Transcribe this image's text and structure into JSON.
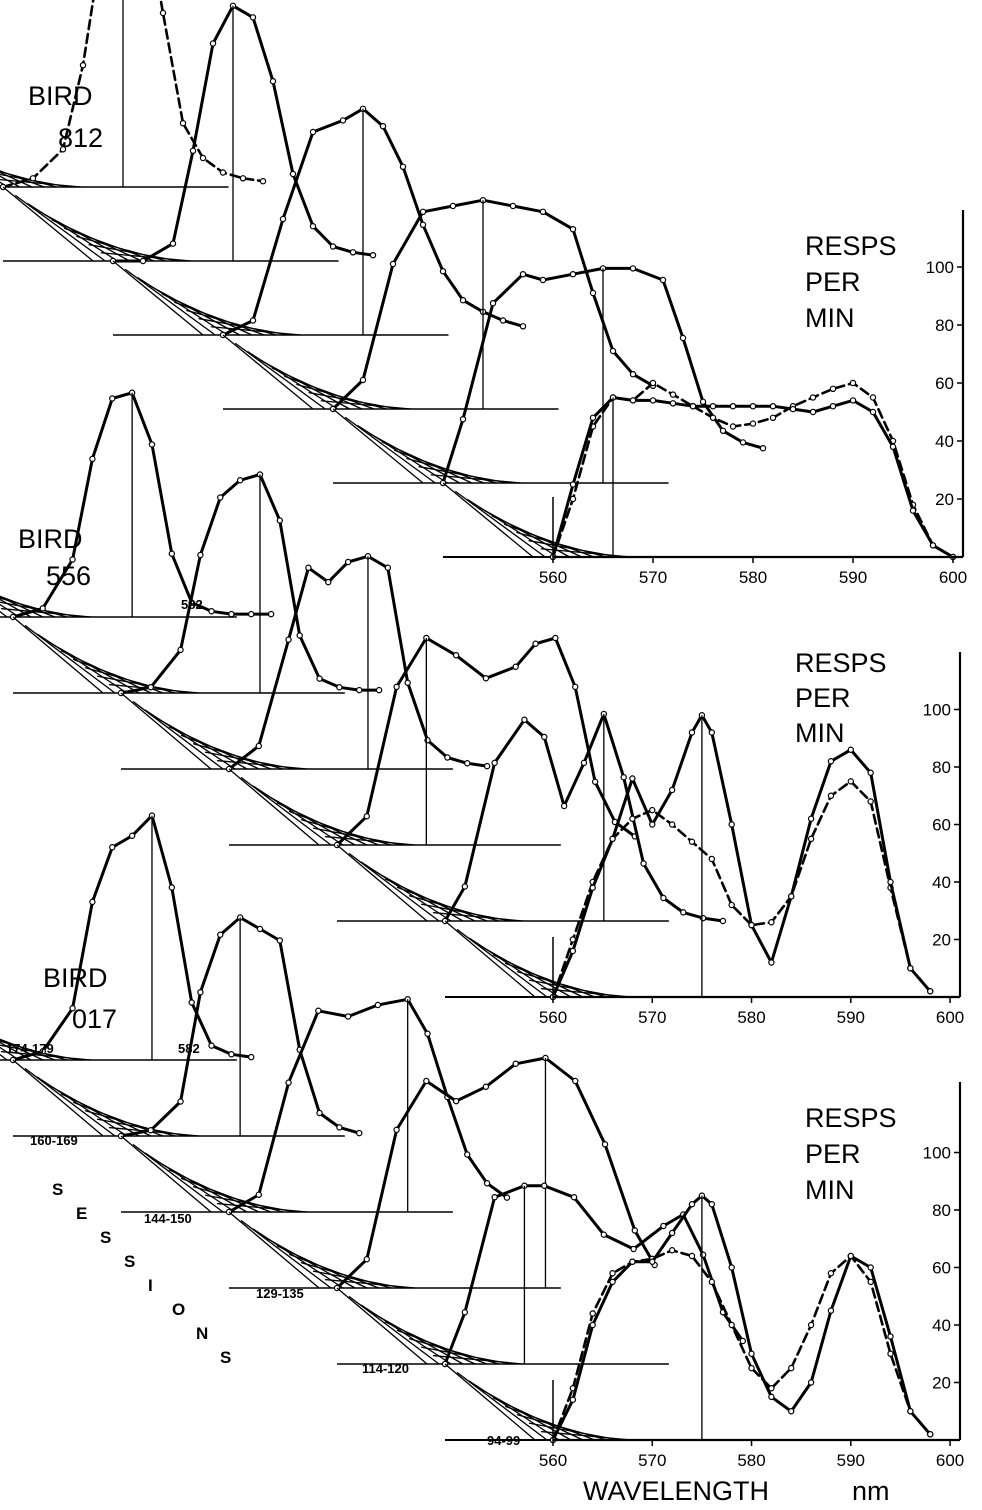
{
  "figure": {
    "xlabel": "WAVELENGTH",
    "xunit": "nm",
    "sessions_label": "SESSIONS"
  },
  "chart_data": [
    {
      "type": "line",
      "subject": "BIRD 812",
      "ylabel": "RESPS PER MIN",
      "y_label_lines": [
        "RESPS",
        "PER",
        "MIN"
      ],
      "title_lines": [
        "BIRD",
        "812"
      ],
      "xlim": [
        560,
        601
      ],
      "ylim": [
        0,
        115
      ],
      "x_ticks": [
        560,
        570,
        580,
        590,
        600
      ],
      "y_ticks": [
        20,
        40,
        60,
        80,
        100
      ],
      "series": [
        {
          "layer": 0,
          "style": "dashed",
          "x": [
            560,
            563,
            566,
            568,
            570,
            572,
            574,
            576,
            578,
            580,
            582,
            584,
            586
          ],
          "y": [
            0,
            3,
            13,
            42,
            86,
            118,
            100,
            60,
            22,
            10,
            5,
            3,
            2
          ]
        },
        {
          "layer": 1,
          "style": "solid",
          "x": [
            560,
            563,
            566,
            568,
            570,
            572,
            574,
            576,
            578,
            580,
            582,
            584,
            586
          ],
          "y": [
            0,
            0,
            6,
            38,
            75,
            88,
            84,
            62,
            30,
            12,
            5,
            3,
            2
          ]
        },
        {
          "layer": 2,
          "style": "solid",
          "x": [
            560,
            563,
            566,
            569,
            572,
            574,
            576,
            578,
            580,
            582,
            584,
            586,
            588,
            590
          ],
          "y": [
            0,
            5,
            40,
            70,
            74,
            78,
            72,
            58,
            38,
            22,
            12,
            8,
            5,
            3
          ]
        },
        {
          "layer": 3,
          "style": "solid",
          "x": [
            560,
            563,
            566,
            569,
            572,
            575,
            578,
            581,
            584,
            586,
            588,
            590,
            592
          ],
          "y": [
            0,
            10,
            50,
            68,
            70,
            72,
            70,
            68,
            62,
            40,
            20,
            12,
            8
          ]
        },
        {
          "layer": 4,
          "style": "solid",
          "x": [
            560,
            562,
            565,
            568,
            570,
            573,
            576,
            579,
            582,
            584,
            586,
            588,
            590,
            592
          ],
          "y": [
            0,
            22,
            62,
            72,
            70,
            72,
            74,
            74,
            70,
            50,
            28,
            18,
            14,
            12
          ]
        },
        {
          "layer": 5,
          "style": "dashed",
          "x": [
            560,
            562,
            564,
            566,
            568,
            570,
            572,
            574,
            576,
            578,
            580,
            582,
            584,
            586,
            588,
            590,
            592,
            594,
            596,
            598,
            600
          ],
          "y": [
            0,
            20,
            45,
            55,
            54,
            60,
            56,
            52,
            48,
            45,
            46,
            48,
            52,
            55,
            58,
            60,
            55,
            40,
            18,
            4,
            0
          ]
        },
        {
          "layer": 5,
          "style": "solid",
          "x": [
            560,
            562,
            564,
            566,
            568,
            570,
            572,
            574,
            576,
            578,
            580,
            582,
            584,
            586,
            588,
            590,
            592,
            594,
            596,
            598,
            600
          ],
          "y": [
            0,
            25,
            48,
            55,
            54,
            54,
            53,
            52,
            52,
            52,
            52,
            52,
            51,
            50,
            52,
            54,
            50,
            38,
            16,
            4,
            0
          ]
        }
      ]
    },
    {
      "type": "line",
      "subject": "BIRD 556",
      "ylabel": "RESPS PER MIN",
      "y_label_lines": [
        "RESPS",
        "PER",
        "MIN"
      ],
      "title_lines": [
        "BIRD",
        "556"
      ],
      "peak_label": "582",
      "xlim": [
        560,
        601
      ],
      "ylim": [
        0,
        115
      ],
      "x_ticks": [
        560,
        570,
        580,
        590,
        600
      ],
      "y_ticks": [
        20,
        40,
        60,
        80,
        100
      ],
      "series": [
        {
          "layer": 0,
          "style": "solid",
          "x": [
            560,
            563,
            566,
            568,
            570,
            572,
            574,
            576,
            578,
            580,
            582,
            584,
            586
          ],
          "y": [
            0,
            3,
            20,
            55,
            76,
            78,
            60,
            22,
            5,
            2,
            1,
            1,
            1
          ]
        },
        {
          "layer": 1,
          "style": "solid",
          "x": [
            560,
            563,
            566,
            568,
            570,
            572,
            574,
            576,
            578,
            580,
            582,
            584,
            586
          ],
          "y": [
            0,
            2,
            15,
            48,
            68,
            74,
            76,
            60,
            20,
            5,
            2,
            1,
            1
          ]
        },
        {
          "layer": 2,
          "style": "solid",
          "x": [
            560,
            563,
            566,
            568,
            570,
            572,
            574,
            576,
            578,
            580,
            582,
            584,
            586
          ],
          "y": [
            0,
            8,
            45,
            70,
            65,
            72,
            74,
            70,
            30,
            10,
            4,
            2,
            1
          ]
        },
        {
          "layer": 3,
          "style": "solid",
          "x": [
            560,
            563,
            566,
            569,
            572,
            575,
            578,
            580,
            582,
            584,
            586,
            588,
            590
          ],
          "y": [
            0,
            10,
            55,
            72,
            66,
            58,
            62,
            70,
            72,
            55,
            22,
            8,
            3
          ]
        },
        {
          "layer": 4,
          "style": "solid",
          "x": [
            560,
            562,
            565,
            568,
            570,
            572,
            574,
            576,
            578,
            580,
            582,
            584,
            586,
            588
          ],
          "y": [
            0,
            12,
            55,
            70,
            64,
            40,
            55,
            72,
            50,
            20,
            8,
            3,
            1,
            0
          ]
        },
        {
          "layer": 5,
          "style": "dashed",
          "x": [
            560,
            562,
            564,
            566,
            568,
            570,
            572,
            574,
            576,
            578,
            580,
            582,
            584,
            586,
            588,
            590,
            592,
            594,
            596,
            598
          ],
          "y": [
            0,
            20,
            40,
            55,
            62,
            65,
            60,
            54,
            48,
            32,
            25,
            26,
            35,
            55,
            70,
            75,
            68,
            38,
            10,
            2
          ]
        },
        {
          "layer": 5,
          "style": "solid",
          "x": [
            560,
            562,
            564,
            566,
            568,
            570,
            572,
            574,
            575,
            576,
            578,
            580,
            582,
            584,
            586,
            588,
            590,
            592,
            594,
            596,
            598
          ],
          "y": [
            0,
            16,
            38,
            55,
            76,
            60,
            72,
            92,
            98,
            92,
            60,
            25,
            12,
            35,
            62,
            82,
            86,
            78,
            40,
            10,
            2
          ]
        }
      ]
    },
    {
      "type": "line",
      "subject": "BIRD 017",
      "ylabel": "RESPS PER MIN",
      "y_label_lines": [
        "RESPS",
        "PER",
        "MIN"
      ],
      "title_lines": [
        "BIRD",
        "017"
      ],
      "peak_label": "582",
      "xlim": [
        560,
        601
      ],
      "ylim": [
        0,
        115
      ],
      "x_ticks": [
        560,
        570,
        580,
        590,
        600
      ],
      "y_ticks": [
        20,
        40,
        60,
        80,
        100
      ],
      "session_labels": [
        "174-179",
        "160-169",
        "144-150",
        "129-135",
        "114-120",
        "94-99"
      ],
      "series": [
        {
          "layer": 0,
          "style": "solid",
          "x": [
            560,
            563,
            566,
            568,
            570,
            572,
            574,
            576,
            578,
            580,
            582,
            584
          ],
          "y": [
            0,
            3,
            18,
            55,
            74,
            78,
            85,
            60,
            20,
            5,
            2,
            1
          ]
        },
        {
          "layer": 1,
          "style": "solid",
          "x": [
            560,
            563,
            566,
            568,
            570,
            572,
            574,
            576,
            578,
            580,
            582,
            584
          ],
          "y": [
            0,
            2,
            12,
            50,
            70,
            76,
            72,
            68,
            30,
            8,
            3,
            1
          ]
        },
        {
          "layer": 2,
          "style": "solid",
          "x": [
            560,
            563,
            566,
            569,
            572,
            575,
            578,
            580,
            582,
            584,
            586,
            588
          ],
          "y": [
            0,
            6,
            45,
            70,
            68,
            72,
            74,
            62,
            40,
            20,
            10,
            5
          ]
        },
        {
          "layer": 3,
          "style": "solid",
          "x": [
            560,
            563,
            566,
            569,
            572,
            575,
            578,
            581,
            584,
            587,
            590,
            592
          ],
          "y": [
            0,
            10,
            55,
            72,
            65,
            70,
            78,
            80,
            72,
            50,
            20,
            8
          ]
        },
        {
          "layer": 4,
          "style": "solid",
          "x": [
            560,
            562,
            565,
            568,
            570,
            573,
            576,
            579,
            582,
            584,
            586,
            588,
            590
          ],
          "y": [
            0,
            18,
            58,
            62,
            62,
            58,
            45,
            40,
            48,
            52,
            38,
            18,
            8
          ]
        },
        {
          "layer": 5,
          "style": "dashed",
          "x": [
            560,
            562,
            564,
            566,
            568,
            570,
            572,
            574,
            576,
            578,
            580,
            582,
            584,
            586,
            588,
            590,
            592,
            594,
            596,
            598
          ],
          "y": [
            0,
            18,
            44,
            58,
            62,
            63,
            66,
            64,
            55,
            40,
            25,
            18,
            25,
            40,
            58,
            64,
            55,
            30,
            10,
            2
          ]
        },
        {
          "layer": 5,
          "style": "solid",
          "x": [
            560,
            562,
            564,
            566,
            568,
            570,
            572,
            574,
            575,
            576,
            578,
            580,
            582,
            584,
            586,
            588,
            590,
            592,
            594,
            596,
            598
          ],
          "y": [
            0,
            14,
            40,
            55,
            62,
            62,
            72,
            82,
            85,
            82,
            60,
            30,
            15,
            10,
            20,
            45,
            64,
            60,
            36,
            10,
            2
          ]
        }
      ]
    }
  ]
}
